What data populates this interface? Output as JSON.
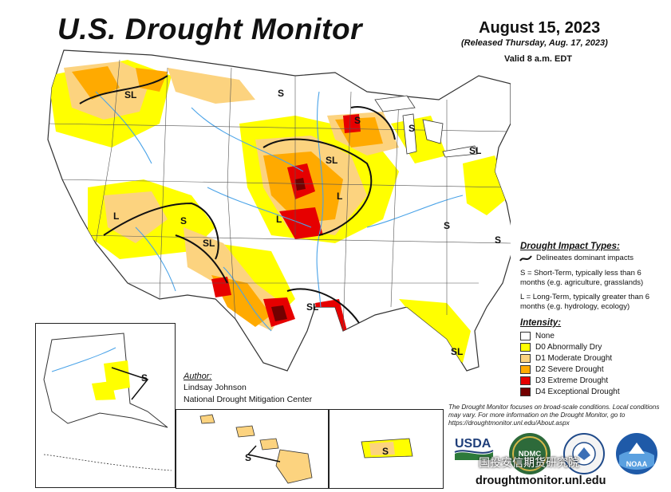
{
  "header": {
    "title": "U.S. Drought Monitor",
    "date": "August 15, 2023",
    "released": "(Released Thursday, Aug. 17, 2023)",
    "valid": "Valid 8 a.m. EDT"
  },
  "author": {
    "heading": "Author:",
    "name": "Lindsay Johnson",
    "org": "National Drought Mitigation Center"
  },
  "impact_types": {
    "heading": "Drought Impact Types:",
    "delineates": "Delineates dominant impacts",
    "short_term": "S = Short-Term, typically less than 6 months (e.g. agriculture, grasslands)",
    "long_term": "L = Long-Term, typically greater than 6 months (e.g. hydrology, ecology)"
  },
  "intensity": {
    "heading": "Intensity:",
    "levels": [
      {
        "label": "None",
        "color": "#ffffff"
      },
      {
        "label": "D0 Abnormally Dry",
        "color": "#ffff00"
      },
      {
        "label": "D1 Moderate Drought",
        "color": "#fcd37f"
      },
      {
        "label": "D2 Severe Drought",
        "color": "#ffaa00"
      },
      {
        "label": "D3 Extreme Drought",
        "color": "#e60000"
      },
      {
        "label": "D4 Exceptional Drought",
        "color": "#730000"
      }
    ]
  },
  "footnote": "The Drought Monitor focuses on broad-scale conditions. Local conditions may vary. For more information on the Drought Monitor, go to https://droughtmonitor.unl.edu/About.aspx",
  "logos": {
    "usda": "USDA",
    "ndmc": "NDMC",
    "noaa": "NOAA"
  },
  "url": "droughtmonitor.unl.edu",
  "watermark": "国投安信期货研究院",
  "map_labels": {
    "sl_nw": "SL",
    "s_nd": "S",
    "s_wi": "S",
    "s_mi": "S",
    "sl_ia": "SL",
    "l_mo": "L",
    "l_ks": "L",
    "l_nv": "L",
    "s_co": "S",
    "sl_nm": "SL",
    "sl_tx": "SL",
    "sl_fl": "SL",
    "sl_pa": "SL",
    "s_va": "S",
    "s_nc": "S",
    "s_ak": "S",
    "s_hi": "S",
    "s_pr": "S"
  },
  "colors": {
    "none": "#ffffff",
    "d0": "#ffff00",
    "d1": "#fcd37f",
    "d2": "#ffaa00",
    "d3": "#e60000",
    "d4": "#730000",
    "water": "#4aa3e8"
  }
}
